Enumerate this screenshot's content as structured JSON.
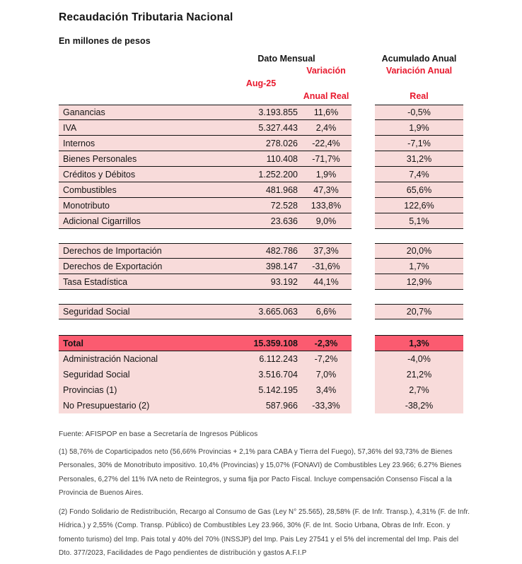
{
  "title": "Recaudación Tributaria Nacional",
  "subtitle": "En millones de pesos",
  "colors": {
    "accent_red": "#E8192D",
    "row_pink": "#F8DBDA",
    "total_pink": "#FB5B70"
  },
  "header": {
    "group_monthly": "Dato Mensual",
    "group_annual": "Acumulado Anual",
    "col_month": "Aug-25",
    "col_variation_line1": "Variación",
    "col_variation_line2": "Anual Real",
    "col_annual_line1": "Variación Anual",
    "col_annual_line2": "Real"
  },
  "table": {
    "sections": [
      {
        "id": "impuestos",
        "style": "lined",
        "gap_before": 0,
        "rows": [
          {
            "label": "Ganancias",
            "value": "3.193.855",
            "variation": "11,6%",
            "annual": "-0,5%"
          },
          {
            "label": "IVA",
            "value": "5.327.443",
            "variation": "2,4%",
            "annual": "1,9%"
          },
          {
            "label": "Internos",
            "value": "278.026",
            "variation": "-22,4%",
            "annual": "-7,1%"
          },
          {
            "label": "Bienes Personales",
            "value": "110.408",
            "variation": "-71,7%",
            "annual": "31,2%"
          },
          {
            "label": "Créditos y Débitos",
            "value": "1.252.200",
            "variation": "1,9%",
            "annual": "7,4%"
          },
          {
            "label": "Combustibles",
            "value": "481.968",
            "variation": "47,3%",
            "annual": "65,6%"
          },
          {
            "label": "Monotributo",
            "value": "72.528",
            "variation": "133,8%",
            "annual": "122,6%"
          },
          {
            "label": "Adicional Cigarrillos",
            "value": "23.636",
            "variation": "9,0%",
            "annual": "5,1%"
          }
        ]
      },
      {
        "id": "comercio-exterior",
        "style": "lined",
        "gap_before": 20,
        "rows": [
          {
            "label": "Derechos de Importación",
            "value": "482.786",
            "variation": "37,3%",
            "annual": "20,0%"
          },
          {
            "label": "Derechos de Exportación",
            "value": "398.147",
            "variation": "-31,6%",
            "annual": "1,7%"
          },
          {
            "label": "Tasa Estadística",
            "value": "93.192",
            "variation": "44,1%",
            "annual": "12,9%"
          }
        ]
      },
      {
        "id": "seguridad-social",
        "style": "lined",
        "gap_before": 20,
        "rows": [
          {
            "label": "Seguridad Social",
            "value": "3.665.063",
            "variation": "6,6%",
            "annual": "20,7%"
          }
        ]
      },
      {
        "id": "total",
        "style": "total",
        "gap_before": 22,
        "rows": [
          {
            "label": "Total",
            "value": "15.359.108",
            "variation": "-2,3%",
            "annual": "1,3%"
          }
        ]
      },
      {
        "id": "distribucion",
        "style": "plain",
        "gap_before": 0,
        "rows": [
          {
            "label": "Administración Nacional",
            "value": "6.112.243",
            "variation": "-7,2%",
            "annual": "-4,0%"
          },
          {
            "label": "Seguridad Social",
            "value": "3.516.704",
            "variation": "7,0%",
            "annual": "21,2%"
          },
          {
            "label": "Provincias (1)",
            "value": "5.142.195",
            "variation": "3,4%",
            "annual": "2,7%"
          },
          {
            "label": "No Presupuestario (2)",
            "value": "587.966",
            "variation": "-33,3%",
            "annual": "-38,2%"
          }
        ]
      }
    ]
  },
  "footnotes": {
    "source": "Fuente: AFISPOP en base a Secretaría de Ingresos Públicos",
    "note1": "(1) 58,76% de Coparticipados neto (56,66% Provincias + 2,1% para CABA y Tierra del Fuego), 57,36% del 93,73% de Bienes Personales, 30% de Monotributo impositivo. 10,4% (Provincias) y 15,07% (FONAVI) de Combustibles Ley 23.966; 6.27% Bienes Personales, 6,27% del 11% IVA neto de Reintegros, y suma fija por Pacto Fiscal.  Incluye compensación Consenso Fiscal a la Provincia de Buenos Aires.",
    "note2": "(2) Fondo Solidario de Redistribución, Recargo al Consumo de Gas (Ley N° 25.565), 28,58% (F. de Infr. Transp.), 4,31% (F. de Infr. Hídrica.) y 2,55% (Comp. Transp. Público) de Combustibles Ley 23.966, 30% (F. de Int. Socio Urbana, Obras de Infr. Econ. y fomento turismo) del Imp. Pais total y 40% del 70% (INSSJP) del Imp. Pais Ley 27541 y el 5% del incremental del Imp. Pais del Dto. 377/2023, Facilidades de Pago pendientes de distribución y gastos A.F.I.P"
  }
}
